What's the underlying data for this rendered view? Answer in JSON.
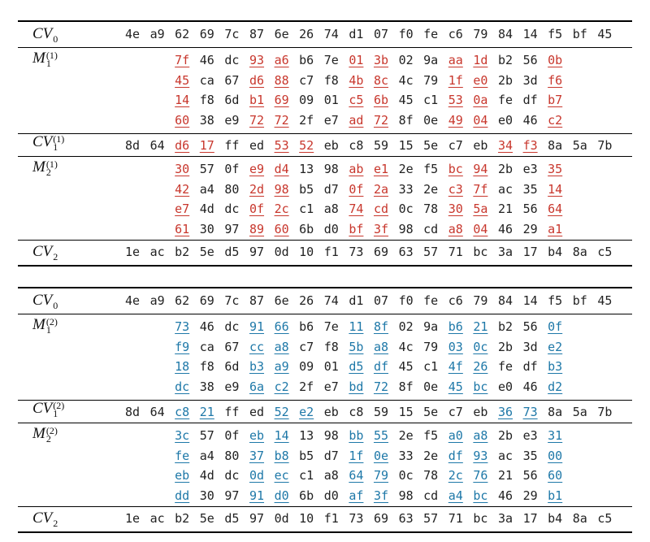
{
  "tables": [
    {
      "cv0": {
        "label": "CV",
        "sub": "0",
        "bytes": [
          "4e",
          "a9",
          "62",
          "69",
          "7c",
          "87",
          "6e",
          "26",
          "74",
          "d1",
          "07",
          "f0",
          "fe",
          "c6",
          "79",
          "84",
          "14",
          "f5",
          "bf",
          "45"
        ]
      },
      "m1": {
        "label": "M",
        "sub": "1",
        "sup": "(1)",
        "rows": [
          [
            "7f",
            "46",
            "dc",
            "93",
            "a6",
            "b6",
            "7e",
            "01",
            "3b",
            "02",
            "9a",
            "aa",
            "1d",
            "b2",
            "56",
            "0b"
          ],
          [
            "45",
            "ca",
            "67",
            "d6",
            "88",
            "c7",
            "f8",
            "4b",
            "8c",
            "4c",
            "79",
            "1f",
            "e0",
            "2b",
            "3d",
            "f6"
          ],
          [
            "14",
            "f8",
            "6d",
            "b1",
            "69",
            "09",
            "01",
            "c5",
            "6b",
            "45",
            "c1",
            "53",
            "0a",
            "fe",
            "df",
            "b7"
          ],
          [
            "60",
            "38",
            "e9",
            "72",
            "72",
            "2f",
            "e7",
            "ad",
            "72",
            "8f",
            "0e",
            "49",
            "04",
            "e0",
            "46",
            "c2"
          ]
        ]
      },
      "cv1": {
        "label": "CV",
        "sub": "1",
        "sup": "(1)",
        "bytes": [
          "8d",
          "64",
          "d6",
          "17",
          "ff",
          "ed",
          "53",
          "52",
          "eb",
          "c8",
          "59",
          "15",
          "5e",
          "c7",
          "eb",
          "34",
          "f3",
          "8a",
          "5a",
          "7b"
        ]
      },
      "m2": {
        "label": "M",
        "sub": "2",
        "sup": "(1)",
        "rows": [
          [
            "30",
            "57",
            "0f",
            "e9",
            "d4",
            "13",
            "98",
            "ab",
            "e1",
            "2e",
            "f5",
            "bc",
            "94",
            "2b",
            "e3",
            "35"
          ],
          [
            "42",
            "a4",
            "80",
            "2d",
            "98",
            "b5",
            "d7",
            "0f",
            "2a",
            "33",
            "2e",
            "c3",
            "7f",
            "ac",
            "35",
            "14"
          ],
          [
            "e7",
            "4d",
            "dc",
            "0f",
            "2c",
            "c1",
            "a8",
            "74",
            "cd",
            "0c",
            "78",
            "30",
            "5a",
            "21",
            "56",
            "64"
          ],
          [
            "61",
            "30",
            "97",
            "89",
            "60",
            "6b",
            "d0",
            "bf",
            "3f",
            "98",
            "cd",
            "a8",
            "04",
            "46",
            "29",
            "a1"
          ]
        ]
      },
      "cv2": {
        "label": "CV",
        "sub": "2",
        "bytes": [
          "1e",
          "ac",
          "b2",
          "5e",
          "d5",
          "97",
          "0d",
          "10",
          "f1",
          "73",
          "69",
          "63",
          "57",
          "71",
          "bc",
          "3a",
          "17",
          "b4",
          "8a",
          "c5"
        ]
      }
    },
    {
      "cv0": {
        "label": "CV",
        "sub": "0",
        "bytes": [
          "4e",
          "a9",
          "62",
          "69",
          "7c",
          "87",
          "6e",
          "26",
          "74",
          "d1",
          "07",
          "f0",
          "fe",
          "c6",
          "79",
          "84",
          "14",
          "f5",
          "bf",
          "45"
        ]
      },
      "m1": {
        "label": "M",
        "sub": "1",
        "sup": "(2)",
        "rows": [
          [
            "73",
            "46",
            "dc",
            "91",
            "66",
            "b6",
            "7e",
            "11",
            "8f",
            "02",
            "9a",
            "b6",
            "21",
            "b2",
            "56",
            "0f"
          ],
          [
            "f9",
            "ca",
            "67",
            "cc",
            "a8",
            "c7",
            "f8",
            "5b",
            "a8",
            "4c",
            "79",
            "03",
            "0c",
            "2b",
            "3d",
            "e2"
          ],
          [
            "18",
            "f8",
            "6d",
            "b3",
            "a9",
            "09",
            "01",
            "d5",
            "df",
            "45",
            "c1",
            "4f",
            "26",
            "fe",
            "df",
            "b3"
          ],
          [
            "dc",
            "38",
            "e9",
            "6a",
            "c2",
            "2f",
            "e7",
            "bd",
            "72",
            "8f",
            "0e",
            "45",
            "bc",
            "e0",
            "46",
            "d2"
          ]
        ]
      },
      "cv1": {
        "label": "CV",
        "sub": "1",
        "sup": "(2)",
        "bytes": [
          "8d",
          "64",
          "c8",
          "21",
          "ff",
          "ed",
          "52",
          "e2",
          "eb",
          "c8",
          "59",
          "15",
          "5e",
          "c7",
          "eb",
          "36",
          "73",
          "8a",
          "5a",
          "7b"
        ]
      },
      "m2": {
        "label": "M",
        "sub": "2",
        "sup": "(2)",
        "rows": [
          [
            "3c",
            "57",
            "0f",
            "eb",
            "14",
            "13",
            "98",
            "bb",
            "55",
            "2e",
            "f5",
            "a0",
            "a8",
            "2b",
            "e3",
            "31"
          ],
          [
            "fe",
            "a4",
            "80",
            "37",
            "b8",
            "b5",
            "d7",
            "1f",
            "0e",
            "33",
            "2e",
            "df",
            "93",
            "ac",
            "35",
            "00"
          ],
          [
            "eb",
            "4d",
            "dc",
            "0d",
            "ec",
            "c1",
            "a8",
            "64",
            "79",
            "0c",
            "78",
            "2c",
            "76",
            "21",
            "56",
            "60"
          ],
          [
            "dd",
            "30",
            "97",
            "91",
            "d0",
            "6b",
            "d0",
            "af",
            "3f",
            "98",
            "cd",
            "a4",
            "bc",
            "46",
            "29",
            "b1"
          ]
        ]
      },
      "cv2": {
        "label": "CV",
        "sub": "2",
        "bytes": [
          "1e",
          "ac",
          "b2",
          "5e",
          "d5",
          "97",
          "0d",
          "10",
          "f1",
          "73",
          "69",
          "63",
          "57",
          "71",
          "bc",
          "3a",
          "17",
          "b4",
          "8a",
          "c5"
        ]
      }
    }
  ],
  "colors": {
    "diff_first": "#c8372d",
    "diff_second": "#1e78a8"
  }
}
